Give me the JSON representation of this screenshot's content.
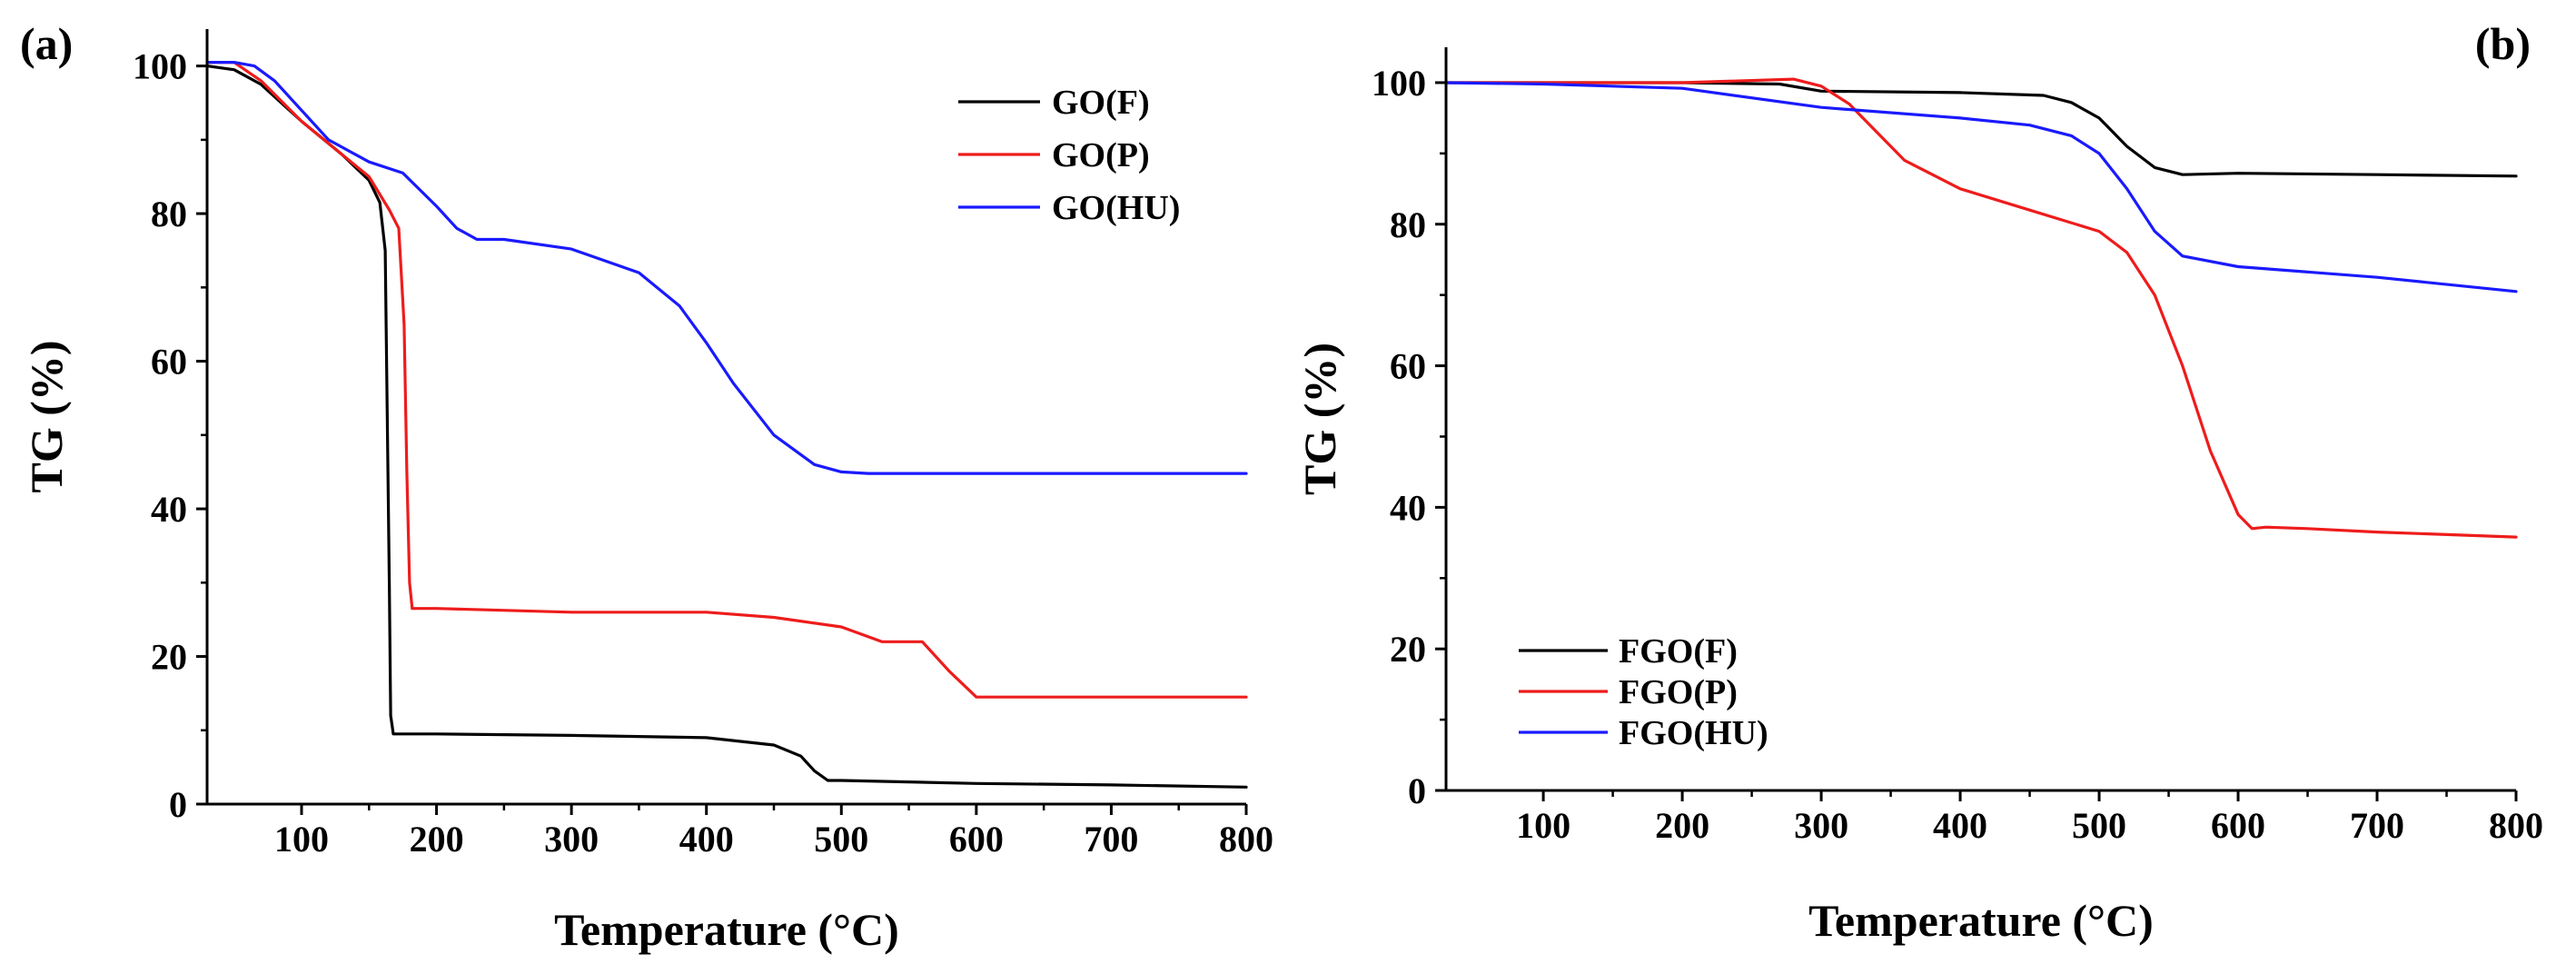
{
  "chart_data": [
    {
      "type": "line",
      "panel_label": "(a)",
      "xlabel": "Temperature (°C)",
      "ylabel": "TG (%)",
      "xlim": [
        30,
        800
      ],
      "ylim": [
        0,
        105
      ],
      "xticks": [
        100,
        200,
        300,
        400,
        500,
        600,
        700,
        800
      ],
      "yticks": [
        0,
        20,
        40,
        60,
        80,
        100
      ],
      "legend_position": "top-right",
      "series": [
        {
          "name": "GO(F)",
          "color": "#000000",
          "x": [
            30,
            50,
            70,
            100,
            130,
            150,
            158,
            162,
            165,
            166,
            168,
            175,
            200,
            300,
            400,
            450,
            470,
            480,
            490,
            500,
            600,
            700,
            800
          ],
          "y": [
            100,
            99.5,
            97.5,
            92.5,
            88,
            84.5,
            81.5,
            75,
            30,
            12,
            9.5,
            9.5,
            9.5,
            9.3,
            9,
            8,
            6.5,
            4.5,
            3.2,
            3.2,
            2.8,
            2.6,
            2.3
          ]
        },
        {
          "name": "GO(P)",
          "color": "#ee1c1c",
          "x": [
            30,
            50,
            70,
            100,
            130,
            150,
            165,
            172,
            176,
            178,
            180,
            182,
            200,
            300,
            400,
            450,
            500,
            530,
            538,
            560,
            580,
            600,
            620,
            700,
            800
          ],
          "y": [
            100.5,
            100.5,
            98,
            92.5,
            88,
            85,
            80.5,
            78,
            65,
            45,
            30,
            26.5,
            26.5,
            26,
            26,
            25.3,
            24,
            22,
            22,
            22,
            18,
            14.5,
            14.5,
            14.5,
            14.5
          ]
        },
        {
          "name": "GO(HU)",
          "color": "#1a1aff",
          "x": [
            30,
            50,
            65,
            80,
            100,
            120,
            150,
            175,
            200,
            215,
            230,
            250,
            300,
            350,
            380,
            400,
            420,
            450,
            480,
            500,
            520,
            600,
            700,
            800
          ],
          "y": [
            100.5,
            100.5,
            100,
            98,
            94,
            90,
            87,
            85.5,
            81,
            78,
            76.5,
            76.5,
            75.2,
            72,
            67.5,
            62.5,
            57,
            50,
            46,
            45,
            44.8,
            44.8,
            44.8,
            44.8
          ]
        }
      ]
    },
    {
      "type": "line",
      "panel_label": "(b)",
      "xlabel": "Temperature (°C)",
      "ylabel": "TG (%)",
      "xlim": [
        30,
        800
      ],
      "ylim": [
        0,
        105
      ],
      "xticks": [
        100,
        200,
        300,
        400,
        500,
        600,
        700,
        800
      ],
      "yticks": [
        0,
        20,
        40,
        60,
        80,
        100
      ],
      "legend_position": "bottom-left",
      "series": [
        {
          "name": "FGO(F)",
          "color": "#000000",
          "x": [
            30,
            100,
            200,
            270,
            300,
            400,
            460,
            480,
            500,
            520,
            540,
            560,
            600,
            700,
            800
          ],
          "y": [
            100,
            100,
            100,
            99.8,
            98.8,
            98.6,
            98.2,
            97.2,
            95,
            91,
            88,
            87,
            87.2,
            87,
            86.8
          ]
        },
        {
          "name": "FGO(P)",
          "color": "#ee1c1c",
          "x": [
            30,
            100,
            200,
            280,
            300,
            320,
            340,
            360,
            400,
            450,
            500,
            520,
            540,
            560,
            580,
            600,
            610,
            620,
            650,
            700,
            800
          ],
          "y": [
            100,
            100,
            100,
            100.5,
            99.5,
            97,
            93,
            89,
            85,
            82,
            79,
            76,
            70,
            60,
            48,
            39,
            37,
            37.2,
            37,
            36.5,
            35.8
          ]
        },
        {
          "name": "FGO(HU)",
          "color": "#1a1aff",
          "x": [
            30,
            100,
            200,
            300,
            400,
            450,
            480,
            500,
            520,
            540,
            560,
            600,
            700,
            800
          ],
          "y": [
            100,
            99.8,
            99.2,
            96.5,
            95,
            94,
            92.5,
            90,
            85,
            79,
            75.5,
            74,
            72.5,
            70.5
          ]
        }
      ]
    }
  ]
}
